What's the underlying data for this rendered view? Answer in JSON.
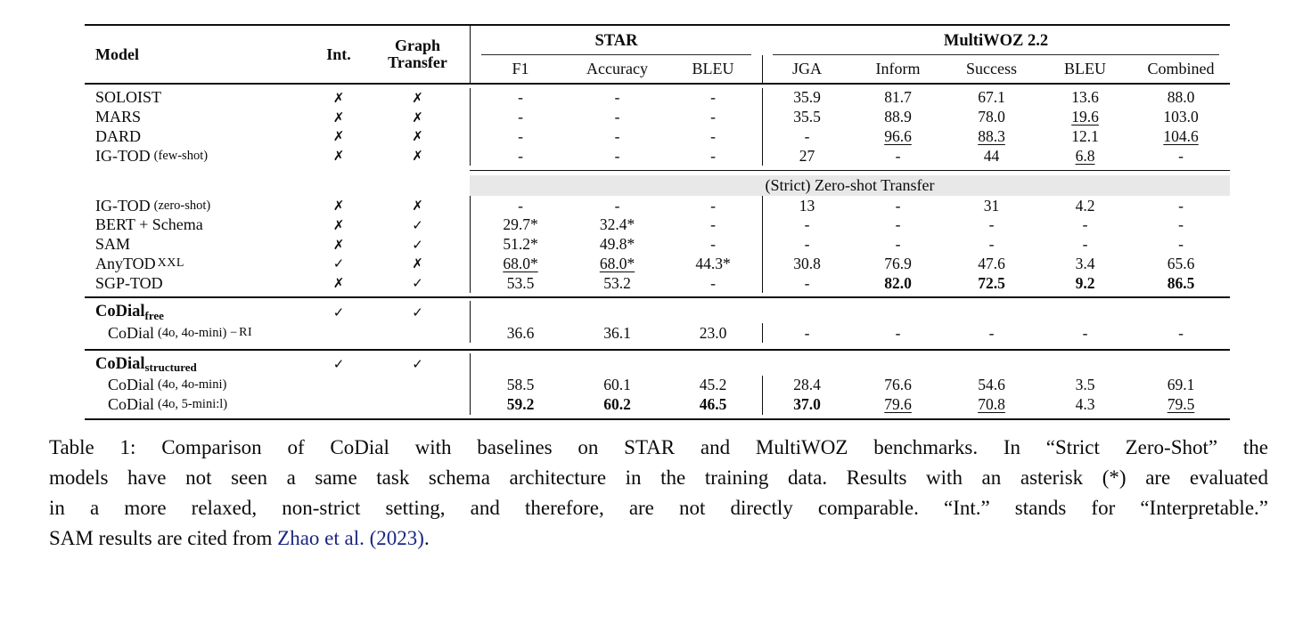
{
  "colors": {
    "banner_bg": "#e8e8e8",
    "link": "#1b2782",
    "text": "#0b0b0b"
  },
  "table": {
    "header": {
      "model": "Model",
      "int": "Int.",
      "graph_line1": "Graph",
      "graph_line2": "Transfer",
      "group_star": "STAR",
      "group_multiwoz": "MultiWOZ 2.2",
      "subcols": [
        "F1",
        "Accuracy",
        "BLEU",
        "JGA",
        "Inform",
        "Success",
        "BLEU",
        "Combined"
      ]
    },
    "banner": "(Strict) Zero-shot Transfer",
    "rows": [
      {
        "m1": "SOLOIST",
        "int": "✗",
        "graph": "✗",
        "cells": [
          "-",
          "-",
          "-",
          "35.9",
          "81.7",
          "67.1",
          "13.6",
          "88.0"
        ]
      },
      {
        "m1": "MARS",
        "int": "✗",
        "graph": "✗",
        "cells": [
          "-",
          "-",
          "-",
          "35.5",
          "88.9",
          "78.0",
          "19.6",
          "103.0"
        ]
      },
      {
        "m1": "DARD",
        "int": "✗",
        "graph": "✗",
        "cells": [
          "-",
          "-",
          "-",
          "-",
          "96.6",
          "88.3",
          "12.1",
          "104.6"
        ]
      },
      {
        "m1": "IG-TOD",
        "m2": "(few-shot)",
        "int": "✗",
        "graph": "✗",
        "cells": [
          "-",
          "-",
          "-",
          "27",
          "-",
          "44",
          "6.8",
          "-"
        ]
      },
      {
        "m1": "IG-TOD",
        "m2": "(zero-shot)",
        "int": "✗",
        "graph": "✗",
        "cells": [
          "-",
          "-",
          "-",
          "13",
          "-",
          "31",
          "4.2",
          "-"
        ]
      },
      {
        "m1": "BERT + Schema",
        "int": "✗",
        "graph": "✓",
        "cells": [
          "29.7*",
          "32.4*",
          "-",
          "-",
          "-",
          "-",
          "-",
          "-"
        ]
      },
      {
        "m1": "SAM",
        "int": "✗",
        "graph": "✓",
        "cells": [
          "51.2*",
          "49.8*",
          "-",
          "-",
          "-",
          "-",
          "-",
          "-"
        ]
      },
      {
        "m1": "AnyTOD",
        "m3": "XXL",
        "int": "✓",
        "graph": "✗",
        "cells": [
          "68.0*",
          "68.0*",
          "44.3*",
          "30.8",
          "76.9",
          "47.6",
          "3.4",
          "65.6"
        ]
      },
      {
        "m1": "SGP-TOD",
        "int": "✗",
        "graph": "✓",
        "cells": [
          "53.5",
          "53.2",
          "-",
          "-",
          "82.0",
          "72.5",
          "9.2",
          "86.5"
        ]
      },
      {
        "b1": "CoDial",
        "bsub": "free",
        "int": "✓",
        "graph": "✓"
      },
      {
        "m1": "CoDial",
        "m2": "(4o, 4o-mini) − ",
        "m3": "RI",
        "cells": [
          "36.6",
          "36.1",
          "23.0",
          "-",
          "-",
          "-",
          "-",
          "-"
        ]
      },
      {
        "b1": "CoDial",
        "bsub": "structured",
        "int": "✓",
        "graph": "✓"
      },
      {
        "m1": "CoDial",
        "m2": "(4o, 4o-mini)",
        "cells": [
          "58.5",
          "60.1",
          "45.2",
          "28.4",
          "76.6",
          "54.6",
          "3.5",
          "69.1"
        ]
      },
      {
        "m1": "CoDial",
        "m2": "(4o, 5-mini:l)",
        "cells": [
          "59.2",
          "60.2",
          "46.5",
          "37.0",
          "79.6",
          "70.8",
          "4.3",
          "79.5"
        ]
      }
    ]
  },
  "caption": {
    "line1": "Table 1: Comparison of CoDial with baselines on STAR and MultiWOZ benchmarks. In “Strict Zero-Shot” the",
    "line2": "models have not seen a same task schema architecture in the training data. Results with an asterisk (*) are evaluated",
    "line3": "in a more relaxed, non-strict setting, and therefore, are not directly comparable. “Int.” stands for “Interpretable.”",
    "line4_prefix": "SAM results are cited from ",
    "cite_author": "Zhao et al.",
    "cite_year": " (2023)",
    "line4_suffix": "."
  }
}
